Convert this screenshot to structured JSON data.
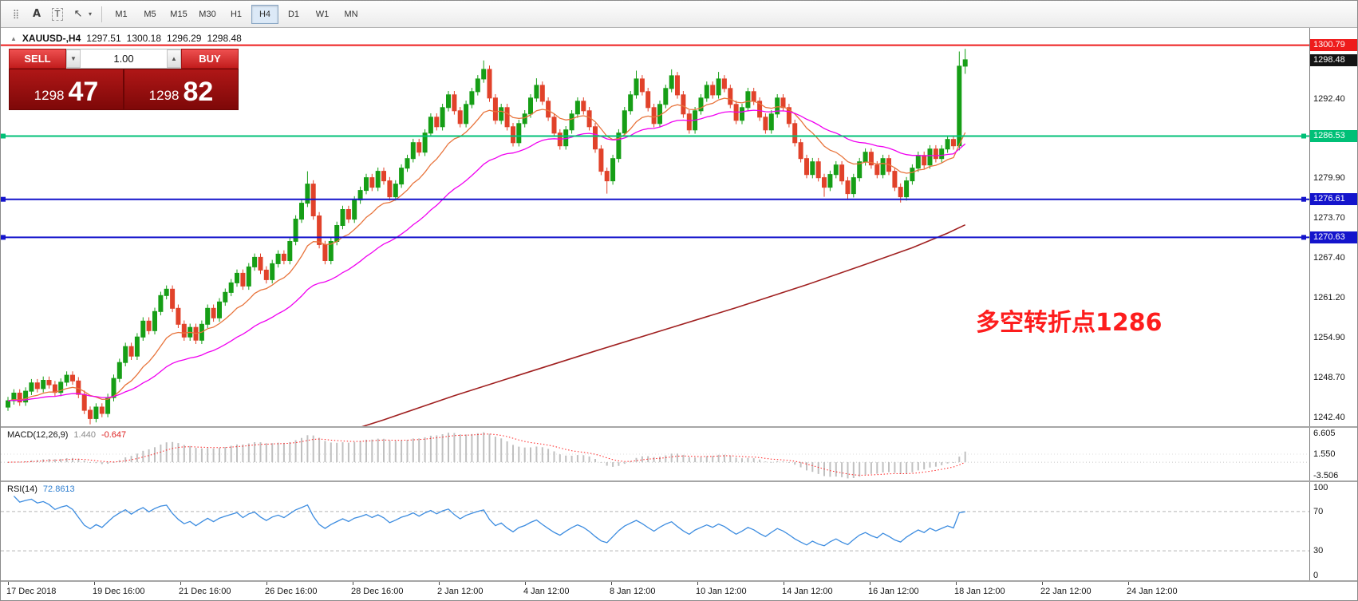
{
  "toolbar": {
    "tools": [
      {
        "name": "cursor-crosshair-icon",
        "glyph": "⣿"
      },
      {
        "name": "text-annotation-icon",
        "glyph": "A"
      },
      {
        "name": "text-label-icon",
        "glyph": "T"
      },
      {
        "name": "arrow-tool-icon",
        "glyph": "↖"
      },
      {
        "name": "dropdown-caret-icon",
        "glyph": "▾"
      }
    ],
    "timeframes": [
      {
        "label": "M1",
        "active": false
      },
      {
        "label": "M5",
        "active": false
      },
      {
        "label": "M15",
        "active": false
      },
      {
        "label": "M30",
        "active": false
      },
      {
        "label": "H1",
        "active": false
      },
      {
        "label": "H4",
        "active": true
      },
      {
        "label": "D1",
        "active": false
      },
      {
        "label": "W1",
        "active": false
      },
      {
        "label": "MN",
        "active": false
      }
    ]
  },
  "chart": {
    "title": {
      "arrow": "▲",
      "symbol": "XAUUSD-,H4",
      "open": "1297.51",
      "high": "1300.18",
      "low": "1296.29",
      "close": "1298.48"
    },
    "trade_panel": {
      "sell_label": "SELL",
      "buy_label": "BUY",
      "volume": "1.00",
      "vol_down": "▼",
      "vol_up": "▲",
      "bid": {
        "main": "1298",
        "pips": "47"
      },
      "ask": {
        "main": "1298",
        "pips": "82"
      }
    },
    "annotation": "多空转折点1286",
    "current_price_badge": {
      "text": "1298.48",
      "price": 1298.48,
      "bg": "#141414"
    },
    "price_axis_plain": [
      {
        "text": "1292.40",
        "price": 1292.4
      },
      {
        "text": "1279.90",
        "price": 1279.9
      },
      {
        "text": "1273.70",
        "price": 1273.7
      },
      {
        "text": "1267.40",
        "price": 1267.4
      },
      {
        "text": "1261.20",
        "price": 1261.2
      },
      {
        "text": "1254.90",
        "price": 1254.9
      },
      {
        "text": "1248.70",
        "price": 1248.7
      },
      {
        "text": "1242.40",
        "price": 1242.4
      }
    ]
  },
  "chart_data": {
    "type": "candlestick",
    "symbol": "XAUUSD-",
    "timeframe": "H4",
    "current_ohlc": {
      "open": 1297.51,
      "high": 1300.18,
      "low": 1296.29,
      "close": 1298.48
    },
    "ylim": [
      1241.0,
      1303.5
    ],
    "x_labels": [
      "17 Dec 2018",
      "19 Dec 16:00",
      "21 Dec 16:00",
      "26 Dec 16:00",
      "28 Dec 16:00",
      "2 Jan 12:00",
      "4 Jan 12:00",
      "8 Jan 12:00",
      "10 Jan 12:00",
      "14 Jan 12:00",
      "16 Jan 12:00",
      "18 Jan 12:00",
      "22 Jan 12:00",
      "24 Jan 12:00"
    ],
    "colors": {
      "bull": "#169e16",
      "bear": "#e1422a"
    },
    "candles": [
      [
        1244.0,
        1245.6,
        1243.4,
        1245.0
      ],
      [
        1245.0,
        1246.8,
        1244.4,
        1246.2
      ],
      [
        1246.2,
        1246.8,
        1244.2,
        1244.8
      ],
      [
        1244.8,
        1247.1,
        1244.2,
        1246.5
      ],
      [
        1246.5,
        1248.4,
        1245.9,
        1247.8
      ],
      [
        1247.8,
        1248.4,
        1246.3,
        1246.9
      ],
      [
        1246.9,
        1248.8,
        1246.3,
        1248.2
      ],
      [
        1248.2,
        1248.8,
        1246.9,
        1247.5
      ],
      [
        1247.5,
        1248.1,
        1245.7,
        1246.3
      ],
      [
        1246.3,
        1248.5,
        1245.7,
        1247.9
      ],
      [
        1247.9,
        1249.6,
        1247.3,
        1249.0
      ],
      [
        1249.0,
        1249.6,
        1247.5,
        1248.1
      ],
      [
        1248.1,
        1248.7,
        1245.4,
        1246.0
      ],
      [
        1246.0,
        1246.6,
        1242.9,
        1243.5
      ],
      [
        1243.5,
        1244.1,
        1241.3,
        1242.2
      ],
      [
        1242.2,
        1244.6,
        1241.6,
        1244.0
      ],
      [
        1244.0,
        1244.6,
        1242.4,
        1243.0
      ],
      [
        1243.0,
        1246.1,
        1242.4,
        1245.5
      ],
      [
        1245.5,
        1249.1,
        1244.9,
        1248.5
      ],
      [
        1248.5,
        1251.6,
        1247.9,
        1251.0
      ],
      [
        1251.0,
        1254.1,
        1250.4,
        1253.5
      ],
      [
        1253.5,
        1254.1,
        1251.4,
        1252.0
      ],
      [
        1252.0,
        1255.6,
        1251.4,
        1255.0
      ],
      [
        1255.0,
        1258.1,
        1254.4,
        1257.5
      ],
      [
        1257.5,
        1258.1,
        1255.4,
        1256.0
      ],
      [
        1256.0,
        1259.6,
        1255.4,
        1259.0
      ],
      [
        1259.0,
        1262.1,
        1258.4,
        1261.5
      ],
      [
        1261.5,
        1263.1,
        1260.9,
        1262.5
      ],
      [
        1262.5,
        1263.1,
        1258.9,
        1259.5
      ],
      [
        1259.5,
        1260.1,
        1256.4,
        1257.0
      ],
      [
        1257.0,
        1257.6,
        1254.4,
        1255.0
      ],
      [
        1255.0,
        1257.1,
        1254.4,
        1256.5
      ],
      [
        1256.5,
        1257.1,
        1253.9,
        1254.5
      ],
      [
        1254.5,
        1257.6,
        1253.9,
        1257.0
      ],
      [
        1257.0,
        1260.1,
        1256.4,
        1259.5
      ],
      [
        1259.5,
        1260.1,
        1257.4,
        1258.0
      ],
      [
        1258.0,
        1261.1,
        1257.4,
        1260.5
      ],
      [
        1260.5,
        1262.6,
        1259.9,
        1262.0
      ],
      [
        1262.0,
        1264.1,
        1261.4,
        1263.5
      ],
      [
        1263.5,
        1265.6,
        1262.9,
        1265.0
      ],
      [
        1265.0,
        1265.6,
        1262.4,
        1263.0
      ],
      [
        1263.0,
        1266.6,
        1262.4,
        1266.0
      ],
      [
        1266.0,
        1268.1,
        1265.4,
        1267.5
      ],
      [
        1267.5,
        1268.1,
        1264.9,
        1265.5
      ],
      [
        1265.5,
        1266.1,
        1263.4,
        1264.0
      ],
      [
        1264.0,
        1267.1,
        1263.4,
        1266.5
      ],
      [
        1266.5,
        1268.6,
        1265.9,
        1268.0
      ],
      [
        1268.0,
        1268.6,
        1266.4,
        1267.0
      ],
      [
        1267.0,
        1270.6,
        1266.4,
        1270.0
      ],
      [
        1270.0,
        1274.1,
        1269.4,
        1273.5
      ],
      [
        1273.5,
        1276.6,
        1272.9,
        1276.0
      ],
      [
        1276.0,
        1281.0,
        1275.4,
        1279.0
      ],
      [
        1279.0,
        1279.6,
        1273.4,
        1274.0
      ],
      [
        1274.0,
        1274.6,
        1268.9,
        1269.5
      ],
      [
        1269.5,
        1270.1,
        1266.4,
        1267.0
      ],
      [
        1267.0,
        1270.6,
        1266.4,
        1270.0
      ],
      [
        1270.0,
        1273.1,
        1269.4,
        1272.5
      ],
      [
        1272.5,
        1275.6,
        1271.9,
        1275.0
      ],
      [
        1275.0,
        1275.6,
        1272.9,
        1273.5
      ],
      [
        1273.5,
        1277.1,
        1272.9,
        1276.5
      ],
      [
        1276.5,
        1278.6,
        1275.9,
        1278.0
      ],
      [
        1278.0,
        1280.6,
        1277.4,
        1280.0
      ],
      [
        1280.0,
        1280.6,
        1277.9,
        1278.5
      ],
      [
        1278.5,
        1281.6,
        1277.9,
        1281.0
      ],
      [
        1281.0,
        1281.6,
        1278.9,
        1279.5
      ],
      [
        1279.5,
        1280.1,
        1276.4,
        1277.0
      ],
      [
        1277.0,
        1279.6,
        1276.4,
        1279.0
      ],
      [
        1279.0,
        1282.1,
        1278.4,
        1281.5
      ],
      [
        1281.5,
        1283.6,
        1280.9,
        1283.0
      ],
      [
        1283.0,
        1286.1,
        1282.4,
        1285.5
      ],
      [
        1285.5,
        1286.1,
        1283.4,
        1284.0
      ],
      [
        1284.0,
        1287.6,
        1283.4,
        1287.0
      ],
      [
        1287.0,
        1290.1,
        1286.4,
        1289.5
      ],
      [
        1289.5,
        1290.1,
        1287.4,
        1288.0
      ],
      [
        1288.0,
        1291.6,
        1287.4,
        1291.0
      ],
      [
        1291.0,
        1293.6,
        1290.4,
        1293.0
      ],
      [
        1293.0,
        1293.6,
        1289.9,
        1290.5
      ],
      [
        1290.5,
        1291.1,
        1287.9,
        1288.5
      ],
      [
        1288.5,
        1292.1,
        1287.9,
        1291.5
      ],
      [
        1291.5,
        1294.1,
        1290.9,
        1293.5
      ],
      [
        1293.5,
        1296.1,
        1292.9,
        1295.5
      ],
      [
        1295.5,
        1298.4,
        1294.9,
        1297.0
      ],
      [
        1297.0,
        1297.6,
        1291.9,
        1292.5
      ],
      [
        1292.5,
        1293.1,
        1288.4,
        1289.0
      ],
      [
        1289.0,
        1291.6,
        1288.4,
        1291.0
      ],
      [
        1291.0,
        1291.6,
        1287.4,
        1288.0
      ],
      [
        1288.0,
        1288.6,
        1284.9,
        1285.5
      ],
      [
        1285.5,
        1289.1,
        1284.9,
        1288.5
      ],
      [
        1288.5,
        1290.6,
        1287.9,
        1290.0
      ],
      [
        1290.0,
        1293.1,
        1289.4,
        1292.5
      ],
      [
        1292.5,
        1295.6,
        1291.9,
        1294.5
      ],
      [
        1294.5,
        1295.1,
        1291.4,
        1292.0
      ],
      [
        1292.0,
        1292.6,
        1288.9,
        1289.5
      ],
      [
        1289.5,
        1290.1,
        1286.4,
        1287.0
      ],
      [
        1287.0,
        1287.6,
        1284.4,
        1285.0
      ],
      [
        1285.0,
        1288.1,
        1284.4,
        1287.5
      ],
      [
        1287.5,
        1290.6,
        1286.9,
        1290.0
      ],
      [
        1290.0,
        1292.6,
        1289.4,
        1292.0
      ],
      [
        1292.0,
        1292.6,
        1289.9,
        1290.5
      ],
      [
        1290.5,
        1291.1,
        1287.4,
        1288.0
      ],
      [
        1288.0,
        1288.6,
        1283.9,
        1284.5
      ],
      [
        1284.5,
        1285.1,
        1280.4,
        1281.0
      ],
      [
        1281.0,
        1281.6,
        1277.5,
        1279.5
      ],
      [
        1279.5,
        1283.6,
        1278.9,
        1283.0
      ],
      [
        1283.0,
        1287.6,
        1282.4,
        1287.0
      ],
      [
        1287.0,
        1291.1,
        1286.4,
        1290.5
      ],
      [
        1290.5,
        1293.6,
        1289.9,
        1293.0
      ],
      [
        1293.0,
        1296.8,
        1292.4,
        1295.5
      ],
      [
        1295.5,
        1296.1,
        1292.9,
        1293.5
      ],
      [
        1293.5,
        1294.1,
        1290.4,
        1291.0
      ],
      [
        1291.0,
        1291.6,
        1287.9,
        1288.5
      ],
      [
        1288.5,
        1292.1,
        1287.9,
        1291.5
      ],
      [
        1291.5,
        1294.6,
        1290.9,
        1294.0
      ],
      [
        1294.0,
        1297.0,
        1293.4,
        1296.0
      ],
      [
        1296.0,
        1296.6,
        1292.4,
        1293.0
      ],
      [
        1293.0,
        1293.6,
        1289.4,
        1290.0
      ],
      [
        1290.0,
        1290.6,
        1286.9,
        1287.5
      ],
      [
        1287.5,
        1291.1,
        1286.9,
        1290.5
      ],
      [
        1290.5,
        1293.1,
        1289.9,
        1292.5
      ],
      [
        1292.5,
        1295.1,
        1291.9,
        1294.5
      ],
      [
        1294.5,
        1295.1,
        1292.4,
        1293.0
      ],
      [
        1293.0,
        1296.6,
        1292.4,
        1295.5
      ],
      [
        1295.5,
        1296.1,
        1293.4,
        1294.0
      ],
      [
        1294.0,
        1294.6,
        1290.9,
        1291.5
      ],
      [
        1291.5,
        1292.1,
        1288.4,
        1289.0
      ],
      [
        1289.0,
        1291.6,
        1288.4,
        1291.0
      ],
      [
        1291.0,
        1294.1,
        1290.4,
        1293.5
      ],
      [
        1293.5,
        1294.1,
        1291.4,
        1292.0
      ],
      [
        1292.0,
        1292.6,
        1288.9,
        1289.5
      ],
      [
        1289.5,
        1290.1,
        1286.9,
        1287.5
      ],
      [
        1287.5,
        1290.6,
        1286.9,
        1290.0
      ],
      [
        1290.0,
        1293.1,
        1289.4,
        1292.5
      ],
      [
        1292.5,
        1293.1,
        1290.4,
        1291.0
      ],
      [
        1291.0,
        1291.6,
        1287.9,
        1288.5
      ],
      [
        1288.5,
        1289.1,
        1284.9,
        1285.5
      ],
      [
        1285.5,
        1286.1,
        1282.4,
        1283.0
      ],
      [
        1283.0,
        1283.6,
        1279.9,
        1280.5
      ],
      [
        1280.5,
        1283.1,
        1279.9,
        1282.5
      ],
      [
        1282.5,
        1283.1,
        1279.4,
        1280.0
      ],
      [
        1280.0,
        1280.6,
        1277.0,
        1278.5
      ],
      [
        1278.5,
        1281.1,
        1277.9,
        1280.5
      ],
      [
        1280.5,
        1282.6,
        1279.9,
        1282.0
      ],
      [
        1282.0,
        1282.6,
        1278.9,
        1279.5
      ],
      [
        1279.5,
        1280.1,
        1276.5,
        1277.5
      ],
      [
        1277.5,
        1280.6,
        1276.9,
        1280.0
      ],
      [
        1280.0,
        1283.1,
        1279.4,
        1282.5
      ],
      [
        1282.5,
        1284.6,
        1281.9,
        1284.0
      ],
      [
        1284.0,
        1284.6,
        1281.4,
        1282.0
      ],
      [
        1282.0,
        1282.6,
        1279.9,
        1280.5
      ],
      [
        1280.5,
        1283.6,
        1279.9,
        1283.0
      ],
      [
        1283.0,
        1283.6,
        1280.4,
        1281.0
      ],
      [
        1281.0,
        1281.6,
        1277.9,
        1278.5
      ],
      [
        1278.5,
        1279.1,
        1276.1,
        1277.0
      ],
      [
        1277.0,
        1280.1,
        1276.4,
        1279.5
      ],
      [
        1279.5,
        1282.1,
        1278.9,
        1281.5
      ],
      [
        1281.5,
        1284.1,
        1280.9,
        1283.5
      ],
      [
        1283.5,
        1284.1,
        1281.4,
        1282.0
      ],
      [
        1282.0,
        1285.1,
        1281.4,
        1284.5
      ],
      [
        1284.5,
        1285.1,
        1282.4,
        1283.0
      ],
      [
        1283.0,
        1285.1,
        1282.4,
        1284.5
      ],
      [
        1284.5,
        1286.6,
        1283.9,
        1286.0
      ],
      [
        1286.0,
        1286.6,
        1284.4,
        1285.0
      ],
      [
        1285.0,
        1299.8,
        1284.3,
        1297.5
      ],
      [
        1297.5,
        1300.2,
        1296.3,
        1298.5
      ]
    ],
    "moving_averages": {
      "fast": {
        "type": "ema",
        "period": 13,
        "color": "#e8743c"
      },
      "mid": {
        "type": "ema",
        "period": 34,
        "color": "#f000f0"
      },
      "slow": {
        "color": "#a02020",
        "points": [
          [
            52,
            1238.5
          ],
          [
            64,
            1242.0
          ],
          [
            76,
            1245.8
          ],
          [
            88,
            1249.3
          ],
          [
            100,
            1252.8
          ],
          [
            112,
            1256.2
          ],
          [
            124,
            1259.6
          ],
          [
            136,
            1263.2
          ],
          [
            146,
            1266.4
          ],
          [
            154,
            1269.0
          ],
          [
            160,
            1271.3
          ],
          [
            163,
            1272.6
          ]
        ]
      }
    },
    "hlines": [
      {
        "label": "1300.79",
        "price": 1300.79,
        "color": "#ee1c1c",
        "width": 2,
        "markers": false
      },
      {
        "label": "1286.53",
        "price": 1286.53,
        "color": "#00c077",
        "width": 2,
        "markers": true
      },
      {
        "label": "1276.61",
        "price": 1276.61,
        "color": "#1414cc",
        "width": 2,
        "markers": true
      },
      {
        "label": "1270.63",
        "price": 1270.63,
        "color": "#1414cc",
        "width": 2,
        "markers": true
      }
    ],
    "indicators": {
      "macd": {
        "label": "MACD(12,26,9)",
        "value": "1.440",
        "signal_value": "-0.647",
        "params": {
          "fast": 12,
          "slow": 26,
          "signal": 9
        },
        "ylim": [
          -3.506,
          6.605
        ],
        "axis": [
          {
            "text": "6.605",
            "value": 6.605
          },
          {
            "text": "1.550",
            "value": 1.55
          },
          {
            "text": "-3.506",
            "value": -3.506
          }
        ],
        "histogram_color": "#c0c0c0",
        "signal_color": "#ff2020"
      },
      "rsi": {
        "label": "RSI(14)",
        "value": "72.8613",
        "period": 14,
        "ylim": [
          0,
          100
        ],
        "axis": [
          {
            "text": "100",
            "value": 100
          },
          {
            "text": "70",
            "value": 70
          },
          {
            "text": "30",
            "value": 30
          },
          {
            "text": "0",
            "value": 0
          }
        ],
        "levels": [
          70,
          30
        ],
        "line_color": "#3c8ce0"
      }
    }
  }
}
